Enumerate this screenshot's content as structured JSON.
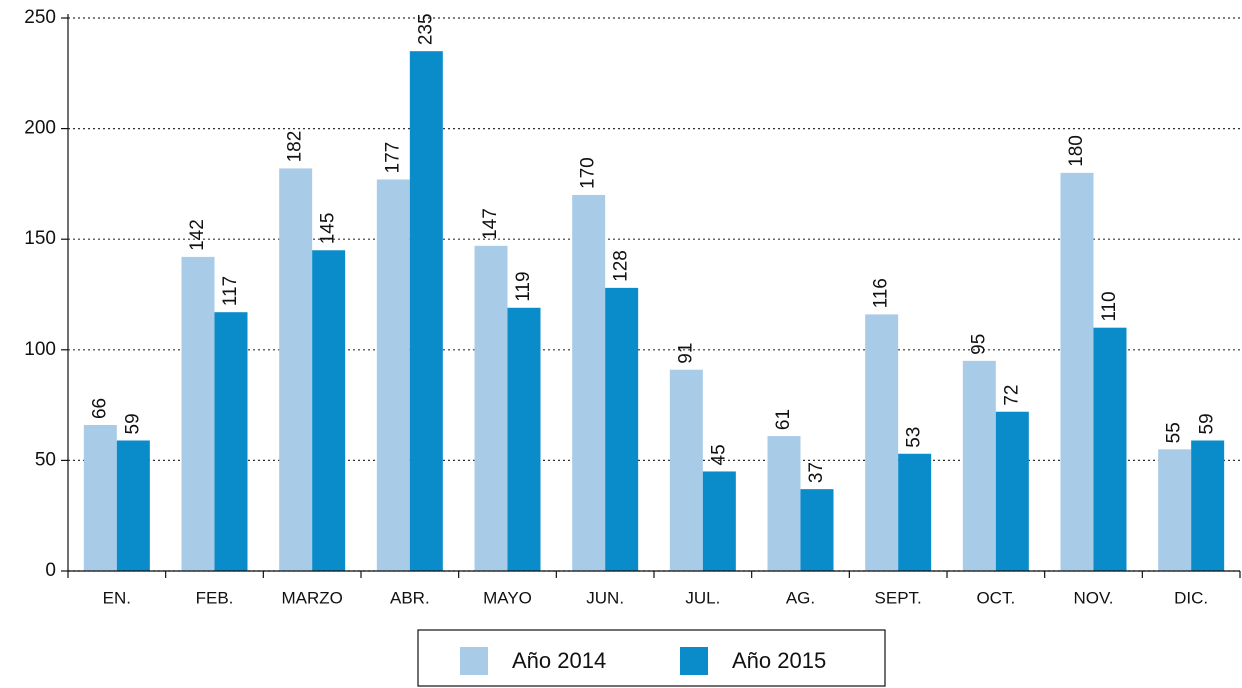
{
  "chart_data": {
    "type": "bar",
    "categories": [
      "EN.",
      "FEB.",
      "MARZO",
      "ABR.",
      "MAYO",
      "JUN.",
      "JUL.",
      "AG.",
      "SEPT.",
      "OCT.",
      "NOV.",
      "DIC."
    ],
    "series": [
      {
        "name": "Año 2014",
        "color": "#a8cbe8",
        "values": [
          66,
          142,
          182,
          177,
          147,
          170,
          91,
          61,
          116,
          95,
          180,
          55
        ]
      },
      {
        "name": "Año 2015",
        "color": "#0a8bca",
        "values": [
          59,
          117,
          145,
          235,
          119,
          128,
          45,
          37,
          53,
          72,
          110,
          59
        ]
      }
    ],
    "ylim": [
      0,
      250
    ],
    "yticks": [
      0,
      50,
      100,
      150,
      200,
      250
    ],
    "grid": true,
    "legend": "bottom"
  }
}
